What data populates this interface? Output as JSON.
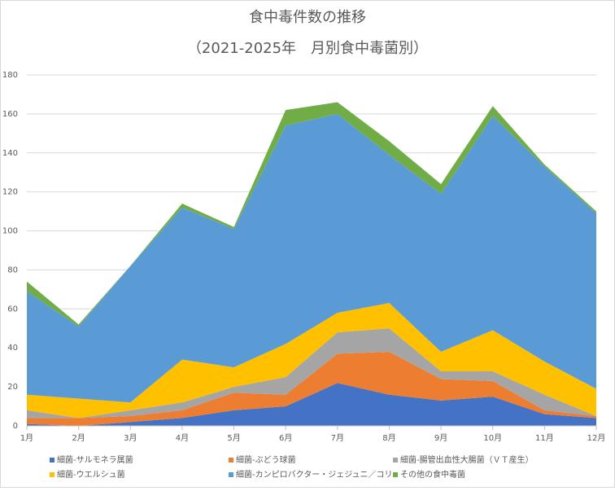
{
  "chart_data": {
    "type": "stacked_area",
    "title": "食中毒件数の推移",
    "subtitle": "（2021-2025年　月別食中毒菌別）",
    "categories": [
      "1月",
      "2月",
      "3月",
      "4月",
      "5月",
      "6月",
      "7月",
      "8月",
      "9月",
      "10月",
      "11月",
      "12月"
    ],
    "series": [
      {
        "name": "細菌-サルモネラ属菌",
        "color": "#4472c4",
        "values": [
          1,
          0,
          2,
          4,
          8,
          10,
          22,
          16,
          13,
          15,
          6,
          4
        ]
      },
      {
        "name": "細菌-ぶどう球菌",
        "color": "#ed7d31",
        "values": [
          3,
          4,
          3,
          4,
          9,
          6,
          15,
          22,
          11,
          8,
          2,
          1
        ]
      },
      {
        "name": "細菌-腸管出血性大腸菌（ＶＴ産生）",
        "color": "#a5a5a5",
        "values": [
          4,
          0,
          3,
          4,
          3,
          9,
          11,
          12,
          4,
          5,
          8,
          0
        ]
      },
      {
        "name": "細菌-ウエルシュ菌",
        "color": "#ffc000",
        "values": [
          8,
          10,
          4,
          22,
          10,
          17,
          10,
          13,
          10,
          21,
          17,
          14
        ]
      },
      {
        "name": "細菌-カンピロバクター・ジェジュニ／コリ",
        "color": "#5b9bd5",
        "values": [
          53,
          37,
          70,
          78,
          71,
          112,
          102,
          76,
          81,
          110,
          100,
          90
        ]
      },
      {
        "name": "その他の食中毒菌",
        "color": "#70ad47",
        "values": [
          5,
          1,
          0,
          2,
          1,
          8,
          6,
          7,
          5,
          5,
          1,
          1
        ]
      }
    ],
    "ylim": [
      0,
      180
    ],
    "yticks": [
      0,
      20,
      40,
      60,
      80,
      100,
      120,
      140,
      160,
      180
    ],
    "grid": true
  }
}
